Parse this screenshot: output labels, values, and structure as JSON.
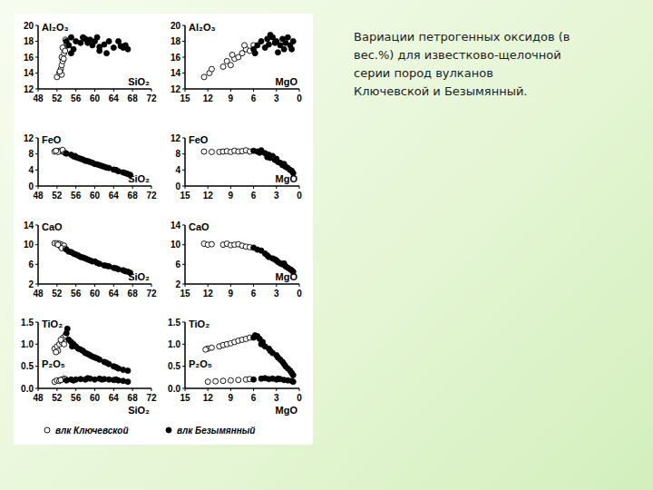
{
  "chart_data": [
    {
      "type": "scatter",
      "ylabel": "Al₂O₃",
      "xlabel": "SiO₂",
      "xlim": [
        48,
        72
      ],
      "xticks": [
        48,
        52,
        56,
        60,
        64,
        68,
        72
      ],
      "ylim": [
        12,
        20
      ],
      "yticks": [
        12,
        14,
        16,
        18,
        20
      ],
      "legend": "bottom",
      "series": [
        {
          "name": "влк Ключевской",
          "color": "#000000",
          "marker": "circle-open",
          "x": [
            52,
            52.5,
            52.8,
            53,
            53.2,
            53,
            53.5,
            53.6,
            53.2,
            54,
            53.8,
            53,
            52.6,
            53.4,
            53.7
          ],
          "values": [
            13.5,
            14,
            14.5,
            15,
            15.5,
            16,
            16.5,
            17,
            17.2,
            17.8,
            18.2,
            13.8,
            14.2,
            15.8,
            16.8
          ]
        },
        {
          "name": "влк Безымянный",
          "color": "#000000",
          "marker": "circle",
          "x": [
            54,
            54.5,
            55,
            55.5,
            56,
            57,
            57.5,
            58,
            58.5,
            59,
            59.5,
            60,
            60.5,
            61,
            62,
            62.5,
            63,
            64,
            65,
            65.5,
            66,
            66.5,
            67,
            55,
            61
          ],
          "values": [
            18,
            17.5,
            18.5,
            17,
            18,
            17.8,
            18.5,
            18.3,
            17.8,
            18.2,
            17.5,
            18,
            18.5,
            17.3,
            17.6,
            16.5,
            18,
            17.2,
            18,
            17.4,
            17.2,
            17.5,
            17,
            16.5,
            16.8
          ]
        }
      ]
    },
    {
      "type": "scatter",
      "ylabel": "Al₂O₃",
      "xlabel": "MgO",
      "xlim": [
        15,
        0
      ],
      "xticks": [
        15,
        12,
        9,
        6,
        3,
        0
      ],
      "ylim": [
        12,
        20
      ],
      "yticks": [
        12,
        14,
        16,
        18,
        20
      ],
      "series": [
        {
          "color": "#000000",
          "marker": "circle-open",
          "x": [
            12.5,
            11.8,
            11.5,
            10,
            9.5,
            9,
            8.5,
            8,
            7.5,
            7,
            6.5,
            6,
            8.8,
            7.2
          ],
          "values": [
            13.5,
            14,
            14.5,
            14.8,
            15.5,
            15,
            15.8,
            16,
            16.5,
            17,
            16.8,
            17.5,
            16.3,
            17.5
          ]
        },
        {
          "color": "#000000",
          "marker": "circle",
          "x": [
            6,
            5.5,
            5,
            4.5,
            4.2,
            4,
            3.5,
            3.2,
            3,
            2.5,
            2.2,
            2,
            1.8,
            1.5,
            1.2,
            1,
            0.8,
            5.8,
            3.8,
            2.8
          ],
          "values": [
            17,
            17.5,
            18,
            17.2,
            18.3,
            17.6,
            18.5,
            17.8,
            18,
            17.5,
            18.3,
            17,
            17.8,
            18.5,
            17.5,
            17,
            18,
            16.5,
            18.8,
            16.6
          ]
        }
      ]
    },
    {
      "type": "scatter",
      "ylabel": "FeO",
      "xlabel": "SiO₂",
      "xlim": [
        48,
        72
      ],
      "xticks": [
        48,
        52,
        56,
        60,
        64,
        68,
        72
      ],
      "ylim": [
        0,
        12
      ],
      "yticks": [
        0,
        4,
        8,
        12
      ],
      "series": [
        {
          "color": "#000000",
          "marker": "circle-open",
          "x": [
            51.5,
            52,
            52.5,
            53,
            53.5,
            52.2,
            53.2,
            51.8,
            53.8
          ],
          "values": [
            8.6,
            8.7,
            8.8,
            8.7,
            8.4,
            8.5,
            9,
            8.8,
            8.2
          ]
        },
        {
          "color": "#000000",
          "marker": "circle",
          "x": [
            54,
            55,
            55.5,
            56,
            56.5,
            57,
            57.5,
            58,
            58.5,
            59,
            59.5,
            60,
            60.5,
            61,
            62,
            62.5,
            63,
            64,
            64.5,
            65,
            66,
            66.5,
            67,
            67.5,
            55.8,
            61.5
          ],
          "values": [
            8.1,
            7.8,
            7.4,
            7.2,
            7,
            6.8,
            6.6,
            6.3,
            6.2,
            6,
            5.8,
            5.5,
            5.4,
            5.2,
            4.8,
            4.6,
            4.5,
            4.1,
            4,
            3.7,
            3.4,
            3.2,
            3,
            2.8,
            7.5,
            5
          ]
        }
      ]
    },
    {
      "type": "scatter",
      "ylabel": "FeO",
      "xlabel": "MgO",
      "xlim": [
        15,
        0
      ],
      "xticks": [
        15,
        12,
        9,
        6,
        3,
        0
      ],
      "ylim": [
        0,
        12
      ],
      "yticks": [
        0,
        4,
        8,
        12
      ],
      "series": [
        {
          "color": "#000000",
          "marker": "circle-open",
          "x": [
            12.5,
            11.5,
            10.5,
            10,
            9.5,
            9,
            8.5,
            8,
            7.5,
            7,
            6.5
          ],
          "values": [
            8.6,
            8.5,
            8.5,
            8.6,
            8.7,
            8.5,
            8.8,
            8.6,
            8.7,
            8.9,
            8.6
          ]
        },
        {
          "color": "#000000",
          "marker": "circle",
          "x": [
            6,
            5.5,
            5,
            4.5,
            4,
            3.8,
            3.5,
            3.2,
            3,
            2.8,
            2.5,
            2.2,
            2,
            1.8,
            1.5,
            1.2,
            1,
            0.8,
            5.2,
            4.2
          ],
          "values": [
            8.8,
            8.6,
            8.9,
            8.2,
            7.8,
            7,
            7.5,
            6.5,
            6.8,
            6,
            5.8,
            5.2,
            5.5,
            4.8,
            4.5,
            4,
            3.8,
            3.2,
            8.3,
            7.2
          ]
        }
      ]
    },
    {
      "type": "scatter",
      "ylabel": "CaO",
      "xlabel": "SiO₂",
      "xlim": [
        48,
        72
      ],
      "xticks": [
        48,
        52,
        56,
        60,
        64,
        68,
        72
      ],
      "ylim": [
        2,
        14
      ],
      "yticks": [
        2,
        6,
        10,
        14
      ],
      "series": [
        {
          "color": "#000000",
          "marker": "circle-open",
          "x": [
            51.5,
            52,
            52.5,
            53,
            52.8,
            53.5,
            53,
            52.2,
            53.8
          ],
          "values": [
            10.3,
            10.3,
            10.2,
            10,
            9.6,
            9.8,
            9.3,
            10,
            9.2
          ]
        },
        {
          "color": "#000000",
          "marker": "circle",
          "x": [
            54,
            54.5,
            55,
            55.5,
            56,
            56.5,
            57,
            57.5,
            58,
            58.5,
            59,
            59.5,
            60,
            60.5,
            61,
            62,
            62.5,
            63,
            64,
            64.5,
            65,
            66,
            66.5,
            67,
            67.5
          ],
          "values": [
            9,
            8.6,
            8.5,
            8.2,
            8,
            7.8,
            7.5,
            7.4,
            7.2,
            7,
            6.8,
            6.6,
            6.6,
            6.3,
            6.1,
            5.8,
            5.7,
            5.6,
            5.3,
            5.2,
            5,
            4.8,
            4.6,
            4.5,
            4.3
          ]
        }
      ]
    },
    {
      "type": "scatter",
      "ylabel": "CaO",
      "xlabel": "MgO",
      "xlim": [
        15,
        0
      ],
      "xticks": [
        15,
        12,
        9,
        6,
        3,
        0
      ],
      "ylim": [
        2,
        14
      ],
      "yticks": [
        2,
        6,
        10,
        14
      ],
      "series": [
        {
          "color": "#000000",
          "marker": "circle-open",
          "x": [
            12.5,
            12,
            11.5,
            10,
            9.5,
            9,
            8.5,
            8,
            7.5,
            7,
            6.5
          ],
          "values": [
            10.2,
            10,
            10.1,
            10,
            10.2,
            9.9,
            10,
            10.1,
            9.8,
            9.6,
            9.5
          ]
        },
        {
          "color": "#000000",
          "marker": "circle",
          "x": [
            6,
            5.5,
            5,
            4.5,
            4.2,
            4,
            3.5,
            3.2,
            3,
            2.8,
            2.5,
            2.2,
            2,
            1.8,
            1.5,
            1.2,
            1,
            0.8
          ],
          "values": [
            9.4,
            9,
            8.8,
            8.2,
            7.8,
            7.5,
            7.2,
            7,
            6.8,
            6.5,
            6.2,
            6,
            6.2,
            5.6,
            5.3,
            5,
            4.8,
            4.5
          ]
        }
      ]
    },
    {
      "type": "scatter",
      "ylabel": "TiO₂",
      "annotations": [
        "P₂O₅"
      ],
      "xlabel": "SiO₂",
      "xlim": [
        48,
        72
      ],
      "xticks": [
        48,
        52,
        56,
        60,
        64,
        68,
        72
      ],
      "ylim": [
        0,
        1.5
      ],
      "yticks": [
        {
          "value": 0,
          "label": "0.0"
        },
        0.5,
        {
          "value": 1,
          "label": "1.0"
        },
        1.5
      ],
      "series": [
        {
          "color": "#000000",
          "marker": "circle-open",
          "x": [
            51.5,
            52,
            52.5,
            53,
            53.3,
            52.8,
            53.5,
            52.2,
            53.8,
            51.8
          ],
          "values": [
            0.9,
            0.95,
            1.0,
            1.05,
            1.15,
            1.1,
            1.0,
            0.85,
            1.2,
            0.82
          ]
        },
        {
          "color": "#000000",
          "marker": "circle",
          "x": [
            54,
            54.5,
            55,
            55.5,
            56,
            56.5,
            57,
            57.5,
            58,
            58.5,
            59,
            59.5,
            60,
            60.5,
            61,
            62,
            62.5,
            63,
            64,
            64.5,
            65,
            66,
            67,
            54.2,
            55.2
          ],
          "values": [
            1.25,
            1.1,
            1.05,
            1.0,
            0.95,
            0.9,
            0.88,
            0.85,
            0.8,
            0.78,
            0.75,
            0.72,
            0.7,
            0.68,
            0.65,
            0.6,
            0.58,
            0.55,
            0.5,
            0.48,
            0.45,
            0.42,
            0.4,
            1.35,
            0.95
          ]
        },
        {
          "color": "#000000",
          "marker": "circle-open",
          "x": [
            51.5,
            52,
            52.5,
            53,
            53.5,
            52.8,
            53.8
          ],
          "values": [
            0.15,
            0.18,
            0.17,
            0.2,
            0.22,
            0.19,
            0.21
          ]
        },
        {
          "color": "#000000",
          "marker": "circle",
          "x": [
            54,
            55,
            56,
            57,
            58,
            59,
            60,
            61,
            62,
            63,
            64,
            65,
            66,
            67,
            55.5,
            58.5,
            61.5,
            64.5
          ],
          "values": [
            0.18,
            0.2,
            0.2,
            0.21,
            0.2,
            0.22,
            0.2,
            0.22,
            0.21,
            0.2,
            0.19,
            0.18,
            0.17,
            0.15,
            0.18,
            0.23,
            0.2,
            0.2
          ]
        }
      ]
    },
    {
      "type": "scatter",
      "ylabel": "TiO₂",
      "annotations": [
        "P₂O₅"
      ],
      "xlabel": "MgO",
      "xlim": [
        15,
        0
      ],
      "xticks": [
        15,
        12,
        9,
        6,
        3,
        0
      ],
      "ylim": [
        0,
        1.5
      ],
      "yticks": [
        {
          "value": 0,
          "label": "0.0"
        },
        0.5,
        {
          "value": 1,
          "label": "1.0"
        },
        1.5
      ],
      "series": [
        {
          "color": "#000000",
          "marker": "circle-open",
          "x": [
            12,
            11.5,
            10.5,
            10,
            9.5,
            9,
            8.5,
            8,
            7.5,
            7,
            6.5,
            12.3
          ],
          "values": [
            0.9,
            0.92,
            0.95,
            0.98,
            1.0,
            1.02,
            1.05,
            1.08,
            1.1,
            1.12,
            1.15,
            0.88
          ]
        },
        {
          "color": "#000000",
          "marker": "circle",
          "x": [
            6,
            5.8,
            5.5,
            5,
            4.8,
            4.5,
            4,
            3.8,
            3.5,
            3,
            2.8,
            2.5,
            2.2,
            2,
            1.8,
            1.5,
            1.2,
            1,
            0.8,
            5.2
          ],
          "values": [
            1.15,
            1.2,
            1.18,
            1.0,
            1.05,
            0.95,
            0.9,
            0.85,
            0.8,
            0.75,
            0.7,
            0.65,
            0.6,
            0.55,
            0.5,
            0.45,
            0.4,
            0.35,
            0.3,
            1.12
          ]
        },
        {
          "color": "#000000",
          "marker": "circle-open",
          "x": [
            12,
            11,
            10,
            9,
            8,
            7,
            6.5
          ],
          "values": [
            0.15,
            0.16,
            0.17,
            0.18,
            0.19,
            0.2,
            0.21
          ]
        },
        {
          "color": "#000000",
          "marker": "circle",
          "x": [
            6,
            5,
            4,
            3.5,
            3,
            2.5,
            2,
            1.5,
            1,
            0.8,
            4.5,
            2.8
          ],
          "values": [
            0.2,
            0.22,
            0.21,
            0.22,
            0.2,
            0.21,
            0.19,
            0.18,
            0.17,
            0.15,
            0.23,
            0.22
          ]
        }
      ]
    }
  ],
  "caption": {
    "lines": [
      "Вариации петрогенных оксидов (в",
      "вес.%) для известково-щелочной",
      "серии пород вулканов",
      "Ключевской и Безымянный."
    ]
  }
}
